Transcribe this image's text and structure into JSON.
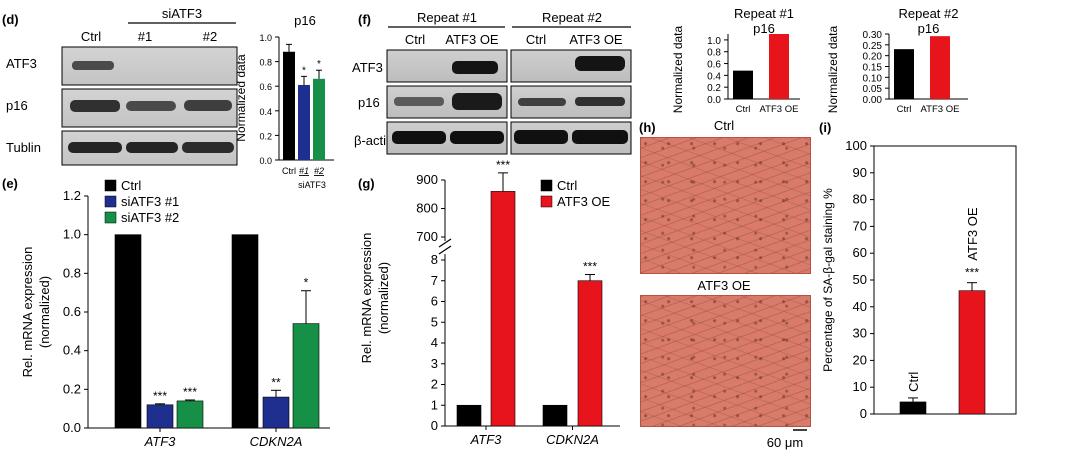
{
  "panel_labels": {
    "d": "(d)",
    "e": "(e)",
    "f": "(f)",
    "g": "(g)",
    "h": "(h)",
    "i": "(i)"
  },
  "blot_d": {
    "group_label": "siATF3",
    "lanes": [
      "Ctrl",
      "#1",
      "#2"
    ],
    "rows": [
      "ATF3",
      "p16",
      "Tublin"
    ]
  },
  "blot_f": {
    "repeats": [
      "Repeat #1",
      "Repeat #2"
    ],
    "lanes": [
      "Ctrl",
      "ATF3 OE",
      "Ctrl",
      "ATF3 OE"
    ],
    "rows": [
      "ATF3",
      "p16",
      "β-actin"
    ]
  },
  "micrographs": {
    "labels": [
      "Ctrl",
      "ATF3 OE"
    ],
    "scale_bar": "60 μm"
  },
  "colors": {
    "ctrl": "#000000",
    "si1": "#1f2f8f",
    "si2": "#159046",
    "oe": "#e8141c"
  },
  "chart_data": [
    {
      "id": "d_p16",
      "type": "bar",
      "title": "p16",
      "ylabel": "Normalized data",
      "ylim": [
        0,
        1.0
      ],
      "yticks": [
        0,
        0.2,
        0.4,
        0.6,
        0.8,
        1.0
      ],
      "categories": [
        "Ctrl",
        "#1",
        "#2"
      ],
      "values": [
        0.88,
        0.61,
        0.66
      ],
      "errors": [
        0.06,
        0.07,
        0.07
      ],
      "significance": [
        "",
        "*",
        "*"
      ],
      "group_label": "siATF3"
    },
    {
      "id": "e_mrna",
      "type": "bar",
      "ylabel": "Rel. mRNA expression",
      "ylabel2": "(normalized)",
      "ylim": [
        0,
        1.2
      ],
      "yticks": [
        0.0,
        0.2,
        0.4,
        0.6,
        0.8,
        1.0,
        1.2
      ],
      "categories": [
        "ATF3",
        "CDKN2A"
      ],
      "series": [
        {
          "name": "Ctrl",
          "values": [
            1.0,
            1.0
          ],
          "errors": [
            0,
            0
          ],
          "significance": [
            "",
            ""
          ]
        },
        {
          "name": "siATF3 #1",
          "values": [
            0.12,
            0.16
          ],
          "errors": [
            0.005,
            0.035
          ],
          "significance": [
            "***",
            "**"
          ]
        },
        {
          "name": "siATF3 #2",
          "values": [
            0.14,
            0.54
          ],
          "errors": [
            0.005,
            0.17
          ],
          "significance": [
            "***",
            "*"
          ]
        }
      ],
      "legend": "top-left"
    },
    {
      "id": "f_rep1",
      "type": "bar",
      "title": "Repeat #1",
      "subtitle": "p16",
      "ylabel": "Normalized data",
      "ylim": [
        0,
        1.1
      ],
      "yticks": [
        0.0,
        0.2,
        0.4,
        0.6,
        0.8,
        1.0
      ],
      "categories": [
        "Ctrl",
        "ATF3 OE"
      ],
      "values": [
        0.48,
        1.1
      ]
    },
    {
      "id": "f_rep2",
      "type": "bar",
      "title": "Repeat #2",
      "subtitle": "p16",
      "ylabel": "Normalized data",
      "ylim": [
        0,
        0.3
      ],
      "yticks": [
        0.0,
        0.05,
        0.1,
        0.15,
        0.2,
        0.25,
        0.3
      ],
      "categories": [
        "Ctrl",
        "ATF3 OE"
      ],
      "values": [
        0.23,
        0.29
      ]
    },
    {
      "id": "g_mrna",
      "type": "bar",
      "ylabel": "Rel. mRNA expression",
      "ylabel2": "(normalized)",
      "axis_break": true,
      "lower_ylim": [
        0,
        8
      ],
      "lower_yticks": [
        0,
        1,
        2,
        3,
        4,
        5,
        6,
        7,
        8
      ],
      "upper_ylim": [
        700,
        900
      ],
      "upper_yticks": [
        700,
        800,
        900
      ],
      "categories": [
        "ATF3",
        "CDKN2A"
      ],
      "series": [
        {
          "name": "Ctrl",
          "values": [
            1.0,
            1.0
          ],
          "errors": [
            0,
            0
          ],
          "significance": [
            "",
            ""
          ]
        },
        {
          "name": "ATF3 OE",
          "values": [
            860,
            7.0
          ],
          "errors": [
            65,
            0.3
          ],
          "significance": [
            "***",
            "***"
          ]
        }
      ],
      "legend": "top-right"
    },
    {
      "id": "i_sabgal",
      "type": "bar",
      "ylabel": "Percentage of SA-β-gal staining %",
      "ylim": [
        0,
        100
      ],
      "yticks": [
        0,
        10,
        20,
        30,
        40,
        50,
        60,
        70,
        80,
        90,
        100
      ],
      "categories": [
        "Ctrl",
        "ATF3 OE"
      ],
      "values": [
        4.5,
        46
      ],
      "errors": [
        1.5,
        3.0
      ],
      "significance": [
        "",
        "***"
      ]
    }
  ]
}
